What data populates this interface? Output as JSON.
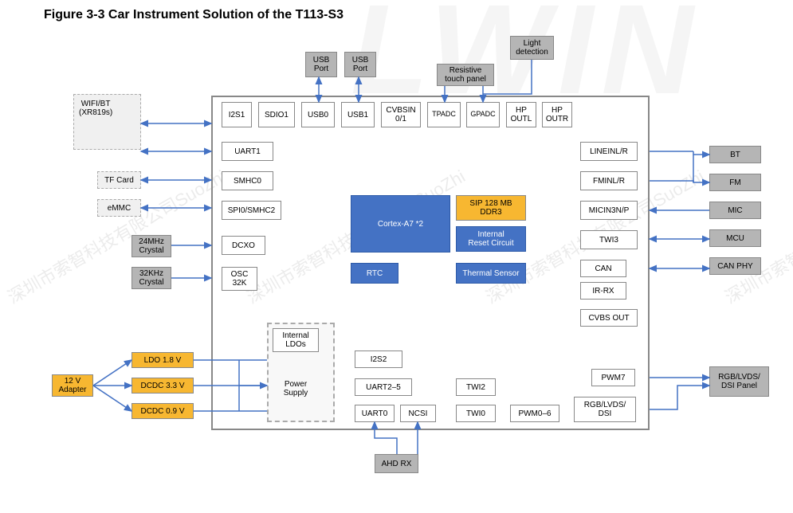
{
  "title": "Figure 3-3 Car Instrument Solution of the T113-S3",
  "colors": {
    "gray": "#b5b5b5",
    "orange": "#f7b731",
    "blue": "#4472c4",
    "arrow": "#4472c4",
    "border": "#888888"
  },
  "watermark_text": "深圳市索智科技有限公司SuoZhi",
  "big_watermark": "LWIN",
  "top_externals": {
    "usb_port_a": "USB\nPort",
    "usb_port_b": "USB\nPort",
    "resistive_touch": "Resistive\ntouch panel",
    "light_detection": "Light\ndetection"
  },
  "left_externals": {
    "wifi_bt": "WIFI/BT\n(XR819s)",
    "tf_card": "TF Card",
    "emmc": "eMMC",
    "xtal24": "24MHz\nCrystal",
    "xtal32": "32KHz\nCrystal",
    "adapter": "12 V\nAdapter",
    "ldo18": "LDO 1.8 V",
    "dcdc33": "DCDC 3.3 V",
    "dcdc09": "DCDC 0.9 V"
  },
  "right_externals": {
    "bt": "BT",
    "fm": "FM",
    "mic": "MIC",
    "mcu": "MCU",
    "can_phy": "CAN PHY",
    "panel": "RGB/LVDS/\nDSI Panel"
  },
  "bottom_externals": {
    "ahd_rx": "AHD RX"
  },
  "soc_top_row": {
    "i2s1": "I2S1",
    "sdio1": "SDIO1",
    "usb0": "USB0",
    "usb1": "USB1",
    "cvbsin": "CVBSIN\n0/1",
    "tpadc": "TPADC",
    "gpadc": "GPADC",
    "hp_outl": "HP\nOUTL",
    "hp_outr": "HP\nOUTR"
  },
  "soc_left_col": {
    "uart1": "UART1",
    "smhc0": "SMHC0",
    "spi_smhc2": "SPI0/SMHC2",
    "dcxo": "DCXO",
    "osc32k": "OSC\n32K"
  },
  "soc_right_col": {
    "lineinlr": "LINEINL/R",
    "fminlr": "FMINL/R",
    "micin": "MICIN3N/P",
    "twi3": "TWI3",
    "can": "CAN",
    "irrx": "IR-RX",
    "cvbsout": "CVBS OUT"
  },
  "soc_core": {
    "cortex": "Cortex-A7 *2",
    "sip_ddr": "SIP 128 MB\nDDR3",
    "reset": "Internal\nReset Circuit",
    "rtc": "RTC",
    "thermal": "Thermal Sensor"
  },
  "power_block": {
    "internal_ldos": "Internal\nLDOs",
    "power_supply": "Power\nSupply"
  },
  "soc_bottom": {
    "i2s2": "I2S2",
    "uart25": "UART2–5",
    "uart0": "UART0",
    "ncsi": "NCSI",
    "twi2": "TWI2",
    "twi0": "TWI0",
    "pwm06": "PWM0–6",
    "pwm7": "PWM7",
    "rgb_lvds_dsi": "RGB/LVDS/\nDSI"
  }
}
